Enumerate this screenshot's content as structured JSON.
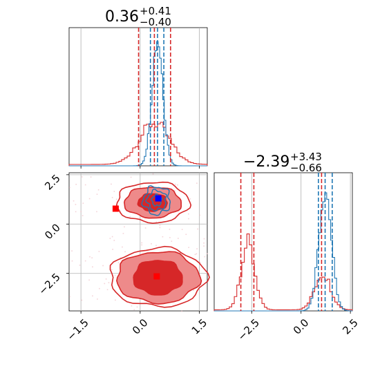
{
  "chart_data": {
    "type": "corner",
    "colors": {
      "blue": "#1f77b4",
      "red": "#d62728",
      "grid": "#b0b0b0",
      "red_fill_dark": "#d62728",
      "red_fill_light": "#ee8a8a"
    },
    "params": [
      {
        "title_main": "0.36",
        "title_sup": "+0.41",
        "title_sub": "−0.40"
      },
      {
        "title_main": "−2.39",
        "title_sup": "+3.43",
        "title_sub": "−0.66"
      }
    ],
    "x_ticks": [
      {
        "value": -1.5,
        "label": "−1.5"
      },
      {
        "value": 0.0,
        "label": "0.0"
      },
      {
        "value": 1.5,
        "label": "1.5"
      }
    ],
    "y_ticks": [
      {
        "value": 2.5,
        "label": "2.5"
      },
      {
        "value": 0.0,
        "label": "0.0"
      },
      {
        "value": -2.5,
        "label": "−2.5"
      }
    ],
    "x2_ticks": [
      {
        "value": -2.5,
        "label": "−2.5"
      },
      {
        "value": 0.0,
        "label": "0.0"
      },
      {
        "value": 2.5,
        "label": "2.5"
      }
    ],
    "xlim": [
      -1.8,
      1.7
    ],
    "ylim": [
      -4.4,
      2.6
    ],
    "hist1": {
      "blue_quantiles": [
        0.26,
        0.44,
        0.6
      ],
      "red_quantiles": [
        -0.04,
        0.36,
        0.77
      ],
      "blue_center": 0.44,
      "blue_sigma": 0.14,
      "red_center": 0.36,
      "red_sigma": 0.38
    },
    "hist2": {
      "blue_quantiles": [
        0.88,
        1.22,
        1.58
      ],
      "red_quantiles": [
        -3.05,
        -2.39,
        1.04
      ],
      "blue_center": 1.22,
      "blue_sigma": 0.32,
      "red_modes": [
        {
          "center": -2.7,
          "sigma": 0.35,
          "weight": 1.0
        },
        {
          "center": 1.1,
          "sigma": 0.4,
          "weight": 0.55
        }
      ]
    },
    "markers": {
      "blue": {
        "x": 0.46,
        "y": 1.3
      },
      "red": [
        {
          "x": -0.62,
          "y": 0.78
        },
        {
          "x": 0.42,
          "y": -2.65
        }
      ]
    },
    "contours": {
      "red_upper": {
        "cx": 0.32,
        "cy": 1.1,
        "levels": [
          [
            0.37,
            0.45
          ],
          [
            0.72,
            0.78
          ],
          [
            0.92,
            1.02
          ]
        ]
      },
      "red_lower": {
        "cx": 0.45,
        "cy": -2.7,
        "levels": [
          [
            0.62,
            0.88
          ],
          [
            1.05,
            1.3
          ],
          [
            1.22,
            1.48
          ]
        ]
      },
      "blue": {
        "cx": 0.42,
        "cy": 1.2,
        "levels": [
          [
            0.12,
            0.28
          ],
          [
            0.24,
            0.5
          ],
          [
            0.34,
            0.7
          ]
        ]
      }
    }
  }
}
